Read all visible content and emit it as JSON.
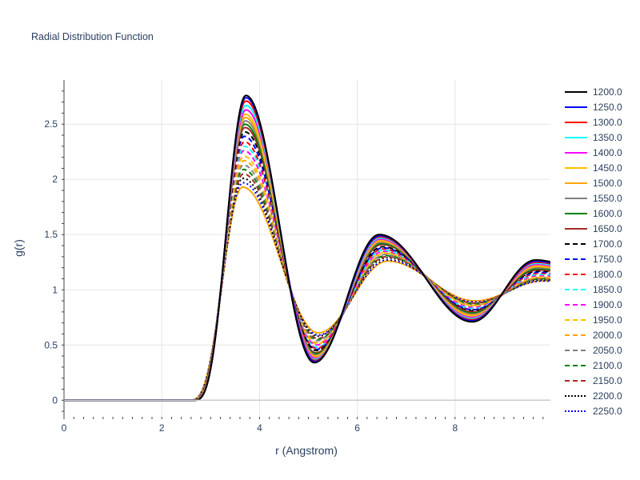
{
  "chart_data": {
    "type": "line",
    "title": "Radial Distribution Function",
    "xlabel": "r (Angstrom)",
    "ylabel": "g(r)",
    "xlim": [
      0,
      9.95
    ],
    "ylim": [
      -0.15,
      2.9
    ],
    "xticks": [
      0,
      2,
      4,
      6,
      8
    ],
    "yticks": [
      0,
      0.5,
      1,
      1.5,
      2,
      2.5
    ],
    "ytick_labels": [
      "0",
      "0.5",
      "1",
      "1.5",
      "2",
      "2.5"
    ],
    "grid": true,
    "legend_position": "right",
    "series": [
      {
        "name": "1200.0",
        "color": "#000000",
        "dash": "solid",
        "peak1_r": 3.72,
        "peak1_g": 2.76,
        "min1_r": 5.12,
        "min1_g": 0.34,
        "peak2_r": 6.45,
        "peak2_g": 1.5,
        "min2_r": 8.35,
        "min2_g": 0.71,
        "peak3_r": 9.65,
        "peak3_g": 1.27
      },
      {
        "name": "1250.0",
        "color": "#0000ff",
        "dash": "solid",
        "peak1_r": 3.72,
        "peak1_g": 2.74,
        "min1_r": 5.13,
        "min1_g": 0.35,
        "peak2_r": 6.46,
        "peak2_g": 1.49,
        "min2_r": 8.35,
        "min2_g": 0.72,
        "peak3_r": 9.65,
        "peak3_g": 1.26
      },
      {
        "name": "1300.0",
        "color": "#ff0000",
        "dash": "solid",
        "peak1_r": 3.72,
        "peak1_g": 2.71,
        "min1_r": 5.13,
        "min1_g": 0.36,
        "peak2_r": 6.46,
        "peak2_g": 1.48,
        "min2_r": 8.35,
        "min2_g": 0.73,
        "peak3_r": 9.66,
        "peak3_g": 1.25
      },
      {
        "name": "1350.0",
        "color": "#00ffff",
        "dash": "solid",
        "peak1_r": 3.72,
        "peak1_g": 2.67,
        "min1_r": 5.13,
        "min1_g": 0.37,
        "peak2_r": 6.47,
        "peak2_g": 1.47,
        "min2_r": 8.35,
        "min2_g": 0.74,
        "peak3_r": 9.66,
        "peak3_g": 1.24
      },
      {
        "name": "1400.0",
        "color": "#ff00ff",
        "dash": "solid",
        "peak1_r": 3.72,
        "peak1_g": 2.63,
        "min1_r": 5.14,
        "min1_g": 0.38,
        "peak2_r": 6.47,
        "peak2_g": 1.46,
        "min2_r": 8.35,
        "min2_g": 0.75,
        "peak3_r": 9.67,
        "peak3_g": 1.23
      },
      {
        "name": "1450.0",
        "color": "#ffbf00",
        "dash": "solid",
        "peak1_r": 3.71,
        "peak1_g": 2.59,
        "min1_r": 5.14,
        "min1_g": 0.39,
        "peak2_r": 6.48,
        "peak2_g": 1.45,
        "min2_r": 8.36,
        "min2_g": 0.76,
        "peak3_r": 9.67,
        "peak3_g": 1.22
      },
      {
        "name": "1500.0",
        "color": "#ffa500",
        "dash": "solid",
        "peak1_r": 3.71,
        "peak1_g": 2.56,
        "min1_r": 5.14,
        "min1_g": 0.4,
        "peak2_r": 6.48,
        "peak2_g": 1.44,
        "min2_r": 8.36,
        "min2_g": 0.77,
        "peak3_r": 9.68,
        "peak3_g": 1.21
      },
      {
        "name": "1550.0",
        "color": "#808080",
        "dash": "solid",
        "peak1_r": 3.71,
        "peak1_g": 2.53,
        "min1_r": 5.15,
        "min1_g": 0.41,
        "peak2_r": 6.49,
        "peak2_g": 1.43,
        "min2_r": 8.36,
        "min2_g": 0.78,
        "peak3_r": 9.68,
        "peak3_g": 1.2
      },
      {
        "name": "1600.0",
        "color": "#008000",
        "dash": "solid",
        "peak1_r": 3.7,
        "peak1_g": 2.5,
        "min1_r": 5.15,
        "min1_g": 0.42,
        "peak2_r": 6.49,
        "peak2_g": 1.42,
        "min2_r": 8.36,
        "min2_g": 0.79,
        "peak3_r": 9.69,
        "peak3_g": 1.19
      },
      {
        "name": "1650.0",
        "color": "#a52a2a",
        "dash": "solid",
        "peak1_r": 3.7,
        "peak1_g": 2.47,
        "min1_r": 5.15,
        "min1_g": 0.43,
        "peak2_r": 6.5,
        "peak2_g": 1.41,
        "min2_r": 8.37,
        "min2_g": 0.8,
        "peak3_r": 9.69,
        "peak3_g": 1.18
      },
      {
        "name": "1700.0",
        "color": "#000000",
        "dash": "dash",
        "peak1_r": 3.7,
        "peak1_g": 2.43,
        "min1_r": 5.16,
        "min1_g": 0.45,
        "peak2_r": 6.51,
        "peak2_g": 1.39,
        "min2_r": 8.37,
        "min2_g": 0.81,
        "peak3_r": 9.7,
        "peak3_g": 1.17
      },
      {
        "name": "1750.0",
        "color": "#0000ff",
        "dash": "dash",
        "peak1_r": 3.69,
        "peak1_g": 2.39,
        "min1_r": 5.16,
        "min1_g": 0.46,
        "peak2_r": 6.52,
        "peak2_g": 1.38,
        "min2_r": 8.37,
        "min2_g": 0.82,
        "peak3_r": 9.7,
        "peak3_g": 1.16
      },
      {
        "name": "1800.0",
        "color": "#ff0000",
        "dash": "dash",
        "peak1_r": 3.69,
        "peak1_g": 2.34,
        "min1_r": 5.16,
        "min1_g": 0.47,
        "peak2_r": 6.52,
        "peak2_g": 1.37,
        "min2_r": 8.38,
        "min2_g": 0.82,
        "peak3_r": 9.71,
        "peak3_g": 1.15
      },
      {
        "name": "1850.0",
        "color": "#00ffff",
        "dash": "dash",
        "peak1_r": 3.69,
        "peak1_g": 2.3,
        "min1_r": 5.17,
        "min1_g": 0.48,
        "peak2_r": 6.53,
        "peak2_g": 1.36,
        "min2_r": 8.38,
        "min2_g": 0.83,
        "peak3_r": 9.71,
        "peak3_g": 1.14
      },
      {
        "name": "1900.0",
        "color": "#ff00ff",
        "dash": "dash",
        "peak1_r": 3.68,
        "peak1_g": 2.26,
        "min1_r": 5.17,
        "min1_g": 0.5,
        "peak2_r": 6.54,
        "peak2_g": 1.35,
        "min2_r": 8.38,
        "min2_g": 0.84,
        "peak3_r": 9.72,
        "peak3_g": 1.13
      },
      {
        "name": "1950.0",
        "color": "#ffbf00",
        "dash": "dash",
        "peak1_r": 3.68,
        "peak1_g": 2.21,
        "min1_r": 5.17,
        "min1_g": 0.51,
        "peak2_r": 6.55,
        "peak2_g": 1.34,
        "min2_r": 8.39,
        "min2_g": 0.85,
        "peak3_r": 9.72,
        "peak3_g": 1.12
      },
      {
        "name": "2000.0",
        "color": "#ffa500",
        "dash": "dash",
        "peak1_r": 3.68,
        "peak1_g": 2.17,
        "min1_r": 5.18,
        "min1_g": 0.52,
        "peak2_r": 6.56,
        "peak2_g": 1.33,
        "min2_r": 8.39,
        "min2_g": 0.86,
        "peak3_r": 9.73,
        "peak3_g": 1.11
      },
      {
        "name": "2050.0",
        "color": "#808080",
        "dash": "dash",
        "peak1_r": 3.67,
        "peak1_g": 2.13,
        "min1_r": 5.18,
        "min1_g": 0.54,
        "peak2_r": 6.57,
        "peak2_g": 1.32,
        "min2_r": 8.39,
        "min2_g": 0.86,
        "peak3_r": 9.74,
        "peak3_g": 1.11
      },
      {
        "name": "2100.0",
        "color": "#008000",
        "dash": "dash",
        "peak1_r": 3.67,
        "peak1_g": 2.09,
        "min1_r": 5.18,
        "min1_g": 0.55,
        "peak2_r": 6.58,
        "peak2_g": 1.31,
        "min2_r": 8.4,
        "min2_g": 0.87,
        "peak3_r": 9.75,
        "peak3_g": 1.1
      },
      {
        "name": "2150.0",
        "color": "#a52a2a",
        "dash": "dash",
        "peak1_r": 3.67,
        "peak1_g": 2.05,
        "min1_r": 5.19,
        "min1_g": 0.56,
        "peak2_r": 6.59,
        "peak2_g": 1.3,
        "min2_r": 8.4,
        "min2_g": 0.88,
        "peak3_r": 9.76,
        "peak3_g": 1.1
      },
      {
        "name": "2200.0",
        "color": "#000000",
        "dash": "dot",
        "peak1_r": 3.66,
        "peak1_g": 2.01,
        "min1_r": 5.19,
        "min1_g": 0.58,
        "peak2_r": 6.6,
        "peak2_g": 1.29,
        "min2_r": 8.4,
        "min2_g": 0.88,
        "peak3_r": 9.77,
        "peak3_g": 1.09
      },
      {
        "name": "2250.0",
        "color": "#0000ff",
        "dash": "dot",
        "peak1_r": 3.66,
        "peak1_g": 1.97,
        "min1_r": 5.2,
        "min1_g": 0.59,
        "peak2_r": 6.61,
        "peak2_g": 1.27,
        "min2_r": 8.41,
        "min2_g": 0.89,
        "peak3_r": 9.78,
        "peak3_g": 1.08
      },
      {
        "name": "",
        "color": "#ffa500",
        "dash": "solid",
        "peak1_r": 3.65,
        "peak1_g": 1.93,
        "min1_r": 5.2,
        "min1_g": 0.61,
        "peak2_r": 6.62,
        "peak2_g": 1.26,
        "min2_r": 8.41,
        "min2_g": 0.9,
        "peak3_r": 9.8,
        "peak3_g": 1.08
      }
    ]
  }
}
